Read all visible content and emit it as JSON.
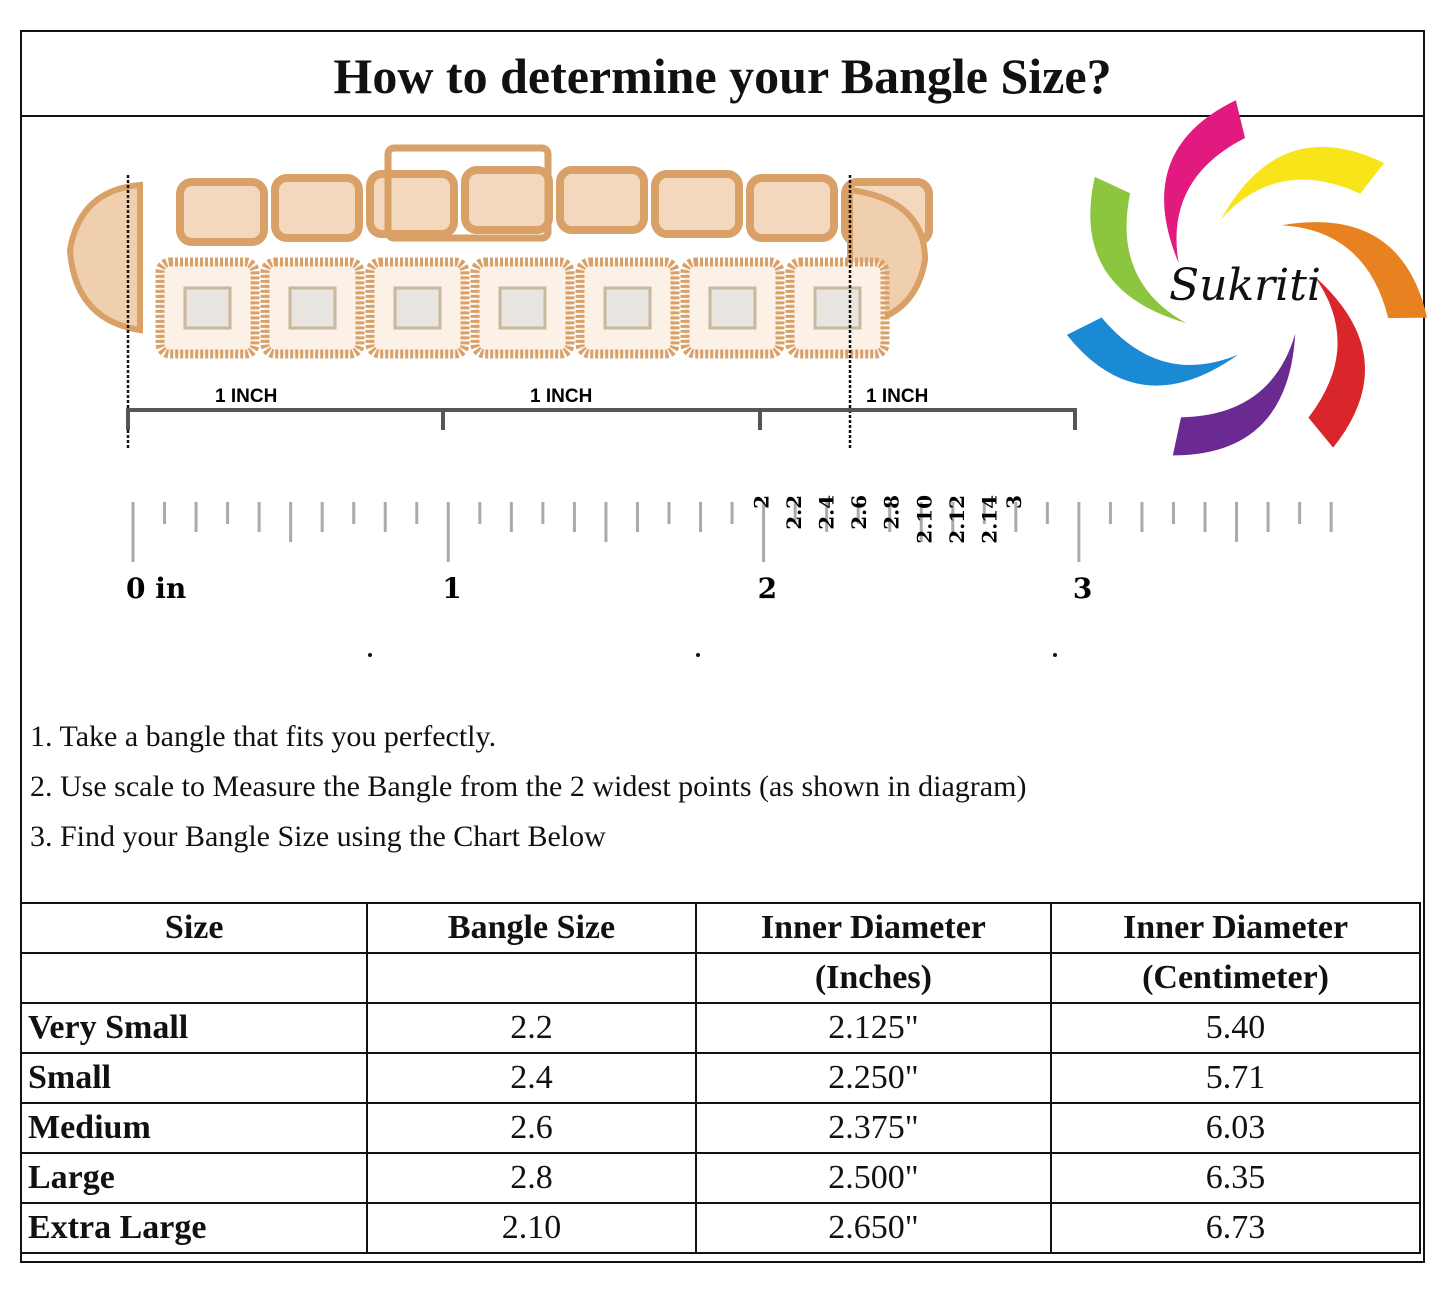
{
  "title": "How to determine your Bangle Size?",
  "logo": {
    "text": "Sukriti",
    "colors": [
      "#f7e51a",
      "#e8811f",
      "#d9262a",
      "#6a2a91",
      "#1a8ad4",
      "#8cc63f",
      "#e2197f"
    ]
  },
  "diagram": {
    "measure_labels": [
      "1 INCH",
      "1 INCH",
      "1 INCH"
    ],
    "size_labels": [
      "2",
      "2.2",
      "2.4",
      "2.6",
      "2.8",
      "2.10",
      "2.12",
      "2.14",
      "3"
    ],
    "ruler_labels": [
      "0 in",
      "1",
      "2",
      "3"
    ],
    "bangle_color": "#d9a068"
  },
  "steps": [
    "1. Take a bangle that fits you perfectly.",
    "2. Use scale to Measure the Bangle from the 2 widest points (as shown in diagram)",
    "3. Find your Bangle Size using the Chart Below"
  ],
  "table": {
    "headers": [
      "Size",
      "Bangle Size",
      "Inner Diameter",
      "Inner Diameter"
    ],
    "subheaders": [
      "",
      "",
      "(Inches)",
      "(Centimeter)"
    ],
    "rows": [
      [
        "Very Small",
        "2.2",
        "2.125\"",
        "5.40"
      ],
      [
        "Small",
        "2.4",
        "2.250\"",
        "5.71"
      ],
      [
        "Medium",
        "2.6",
        "2.375\"",
        "6.03"
      ],
      [
        "Large",
        "2.8",
        "2.500\"",
        "6.35"
      ],
      [
        "Extra Large",
        "2.10",
        "2.650\"",
        "6.73"
      ]
    ]
  }
}
